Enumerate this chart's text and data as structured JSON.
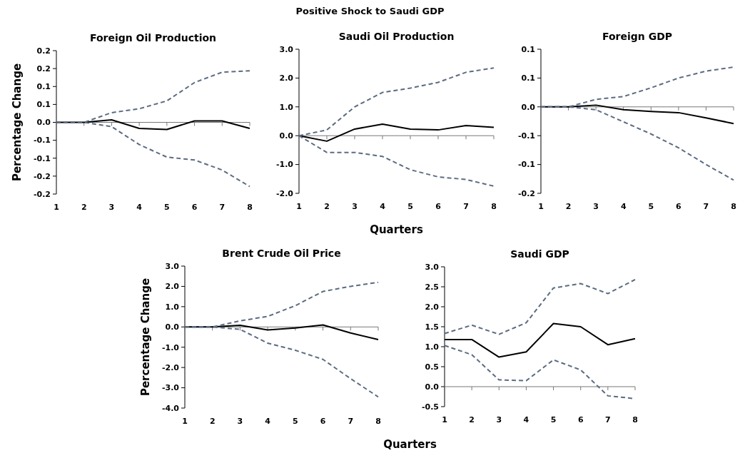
{
  "chart_data": [
    {
      "type": "other",
      "title": "Positive Shock to Saudi GDP"
    },
    {
      "type": "line",
      "title": "Foreign Oil Production",
      "ylabel": "Percentage Change",
      "x": [
        1,
        2,
        3,
        4,
        5,
        6,
        7,
        8
      ],
      "xlim": [
        1,
        8
      ],
      "xticks": [
        1,
        2,
        3,
        4,
        5,
        6,
        7,
        8
      ],
      "ylim": [
        -0.2,
        0.2
      ],
      "yticks": [
        {
          "value": -0.2,
          "label": "-0.2"
        },
        {
          "value": -0.15,
          "label": "-0.2"
        },
        {
          "value": -0.1,
          "label": "-0.1"
        },
        {
          "value": -0.05,
          "label": "-0.1"
        },
        {
          "value": 0,
          "label": "0.0"
        },
        {
          "value": 0.05,
          "label": "0.1"
        },
        {
          "value": 0.1,
          "label": "0.1"
        },
        {
          "value": 0.15,
          "label": "0.2"
        },
        {
          "value": 0.2,
          "label": "0.2"
        }
      ],
      "series": [
        {
          "color": "#000000",
          "line_style": "solid",
          "values": [
            0,
            0,
            0.007,
            -0.017,
            -0.02,
            0.004,
            0.004,
            -0.017
          ]
        },
        {
          "color": "#5b6b82",
          "line_style": "dashed",
          "values": [
            0,
            0,
            0.027,
            0.038,
            0.06,
            0.111,
            0.14,
            0.144
          ]
        },
        {
          "color": "#5b6b82",
          "line_style": "dashed",
          "values": [
            0,
            0,
            -0.012,
            -0.062,
            -0.097,
            -0.105,
            -0.133,
            -0.179
          ]
        }
      ]
    },
    {
      "type": "line",
      "title": "Saudi Oil Production",
      "xlabel": "Quarters",
      "x": [
        1,
        2,
        3,
        4,
        5,
        6,
        7,
        8
      ],
      "xlim": [
        1,
        8
      ],
      "xticks": [
        1,
        2,
        3,
        4,
        5,
        6,
        7,
        8
      ],
      "ylim": [
        -2,
        3
      ],
      "yticks": [
        {
          "value": -2,
          "label": "-2.0"
        },
        {
          "value": -1,
          "label": "-1.0"
        },
        {
          "value": 0,
          "label": "0.0"
        },
        {
          "value": 1,
          "label": "1.0"
        },
        {
          "value": 2,
          "label": "2.0"
        },
        {
          "value": 3,
          "label": "3.0"
        }
      ],
      "series": [
        {
          "color": "#000000",
          "line_style": "solid",
          "values": [
            0,
            -0.19,
            0.23,
            0.4,
            0.23,
            0.2,
            0.35,
            0.29
          ]
        },
        {
          "color": "#5b6b82",
          "line_style": "dashed",
          "values": [
            0,
            0.2,
            1.0,
            1.5,
            1.65,
            1.85,
            2.2,
            2.35
          ]
        },
        {
          "color": "#5b6b82",
          "line_style": "dashed",
          "values": [
            0,
            -0.58,
            -0.58,
            -0.72,
            -1.18,
            -1.43,
            -1.52,
            -1.75
          ]
        }
      ]
    },
    {
      "type": "line",
      "title": "Foreign GDP",
      "x": [
        1,
        2,
        3,
        4,
        5,
        6,
        7,
        8
      ],
      "xlim": [
        1,
        8
      ],
      "xticks": [
        1,
        2,
        3,
        4,
        5,
        6,
        7,
        8
      ],
      "ylim": [
        -0.15,
        0.1
      ],
      "yticks": [
        {
          "value": -0.15,
          "label": "-0.2"
        },
        {
          "value": -0.1,
          "label": "-0.1"
        },
        {
          "value": -0.05,
          "label": "-0.1"
        },
        {
          "value": 0,
          "label": "0.0"
        },
        {
          "value": 0.05,
          "label": "0.1"
        },
        {
          "value": 0.1,
          "label": "0.1"
        }
      ],
      "series": [
        {
          "color": "#000000",
          "line_style": "solid",
          "values": [
            0,
            0,
            0.003,
            -0.005,
            -0.008,
            -0.01,
            -0.019,
            -0.029
          ]
        },
        {
          "color": "#5b6b82",
          "line_style": "dashed",
          "values": [
            0,
            0,
            0.013,
            0.018,
            0.033,
            0.05,
            0.062,
            0.069
          ]
        },
        {
          "color": "#5b6b82",
          "line_style": "dashed",
          "values": [
            0,
            0,
            -0.005,
            -0.026,
            -0.047,
            -0.071,
            -0.1,
            -0.127
          ]
        }
      ]
    },
    {
      "type": "line",
      "title": "Brent Crude Oil Price",
      "ylabel": "Percentage Change",
      "xlabel": "Quarters",
      "x": [
        1,
        2,
        3,
        4,
        5,
        6,
        7,
        8
      ],
      "xlim": [
        1,
        8
      ],
      "xticks": [
        1,
        2,
        3,
        4,
        5,
        6,
        7,
        8
      ],
      "ylim": [
        -4,
        3
      ],
      "yticks": [
        {
          "value": -4,
          "label": "-4.0"
        },
        {
          "value": -3,
          "label": "-3.0"
        },
        {
          "value": -2,
          "label": "-2.0"
        },
        {
          "value": -1,
          "label": "-1.0"
        },
        {
          "value": 0,
          "label": "0.0"
        },
        {
          "value": 1,
          "label": "1.0"
        },
        {
          "value": 2,
          "label": "2.0"
        },
        {
          "value": 3,
          "label": "3.0"
        }
      ],
      "series": [
        {
          "color": "#000000",
          "line_style": "solid",
          "values": [
            0,
            0,
            0.08,
            -0.15,
            -0.05,
            0.1,
            -0.3,
            -0.62
          ]
        },
        {
          "color": "#5b6b82",
          "line_style": "dashed",
          "values": [
            0,
            0,
            0.3,
            0.52,
            1.05,
            1.75,
            2.0,
            2.2
          ]
        },
        {
          "color": "#5b6b82",
          "line_style": "dashed",
          "values": [
            0,
            0,
            -0.12,
            -0.8,
            -1.15,
            -1.6,
            -2.55,
            -3.45
          ]
        }
      ]
    },
    {
      "type": "line",
      "title": "Saudi GDP",
      "x": [
        1,
        2,
        3,
        4,
        5,
        6,
        7,
        8
      ],
      "xlim": [
        1,
        8
      ],
      "xticks": [
        1,
        2,
        3,
        4,
        5,
        6,
        7,
        8
      ],
      "ylim": [
        -0.5,
        3
      ],
      "yticks": [
        {
          "value": -0.5,
          "label": "-0.5"
        },
        {
          "value": 0,
          "label": "0.0"
        },
        {
          "value": 0.5,
          "label": "0.5"
        },
        {
          "value": 1,
          "label": "1.0"
        },
        {
          "value": 1.5,
          "label": "1.5"
        },
        {
          "value": 2,
          "label": "2.0"
        },
        {
          "value": 2.5,
          "label": "2.5"
        },
        {
          "value": 3,
          "label": "3.0"
        }
      ],
      "series": [
        {
          "color": "#000000",
          "line_style": "solid",
          "values": [
            1.18,
            1.18,
            0.74,
            0.87,
            1.58,
            1.5,
            1.05,
            1.2
          ]
        },
        {
          "color": "#5b6b82",
          "line_style": "dashed",
          "values": [
            1.33,
            1.54,
            1.31,
            1.6,
            2.47,
            2.58,
            2.33,
            2.68
          ]
        },
        {
          "color": "#5b6b82",
          "line_style": "dashed",
          "values": [
            1.03,
            0.8,
            0.17,
            0.15,
            0.67,
            0.42,
            -0.23,
            -0.3
          ]
        }
      ]
    }
  ]
}
